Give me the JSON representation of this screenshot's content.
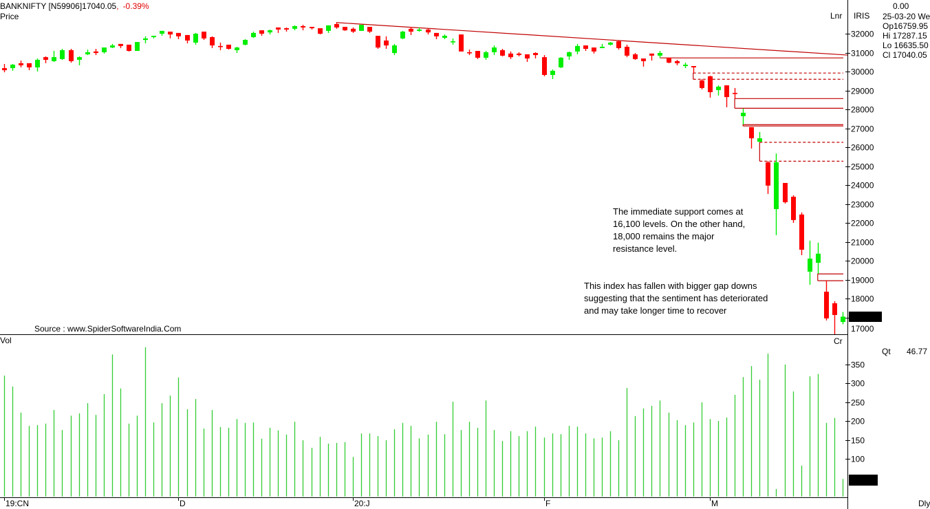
{
  "header": {
    "symbol": "BANKNIFTY [N59906]17040.05",
    "separator": ",",
    "change": "-0.39%",
    "price_label": "Price"
  },
  "info_panel": {
    "value": "0.00",
    "date": "25-03-20 We",
    "open": "Op16759.95",
    "high": "Hi 17287.15",
    "low": "Lo 16635.50",
    "close": "Cl 17040.05",
    "scale": "Lnr",
    "study": "IRIS",
    "last_price_tag": "17040.0",
    "cr_label": "Cr",
    "qt_label": "Qt",
    "qt_value": "46.77",
    "last_volume_tag": "46.77",
    "periodicity": "Dly"
  },
  "volume_label": "Vol",
  "source": "Source : www.SpiderSoftwareIndia.Com",
  "annotations": [
    [
      "The immediate support comes at",
      "16,100 levels. On the other hand,",
      "18,000 remains the major",
      "resistance level."
    ],
    [
      "This index has fallen with bigger gap downs",
      "suggesting that the sentiment has deteriorated",
      "and may take longer time to recover"
    ]
  ],
  "colors": {
    "up": "#00ee00",
    "down": "#ff0000",
    "volume": "#33cc33",
    "lines": "#c00000",
    "change": "#e00000",
    "price_label": "#33dd33",
    "muted": "#b8b8b8"
  },
  "chart_data": {
    "type": "candlestick",
    "price_axis": {
      "ticks": [
        32000,
        31000,
        30000,
        29000,
        28000,
        27000,
        26000,
        25000,
        24000,
        23000,
        22000,
        21000,
        20000,
        19000,
        18000,
        17000
      ],
      "range": [
        16100,
        32650
      ],
      "scale": "linear"
    },
    "volume_axis": {
      "ticks": [
        350,
        300,
        250,
        200,
        150,
        100
      ],
      "range": [
        0,
        400
      ]
    },
    "x_labels": [
      {
        "label": "19:CN",
        "candle": 0
      },
      {
        "label": "D",
        "candle": 21
      },
      {
        "label": "20:J",
        "candle": 42
      },
      {
        "label": "F",
        "candle": 65
      },
      {
        "label": "M",
        "candle": 85
      }
    ],
    "candles_ohlc": [
      [
        30180,
        30400,
        29960,
        30070
      ],
      [
        30180,
        30400,
        30040,
        30360
      ],
      [
        30440,
        30580,
        30220,
        30330
      ],
      [
        30440,
        30440,
        30070,
        30220
      ],
      [
        30220,
        30690,
        30000,
        30620
      ],
      [
        30760,
        30800,
        30440,
        30620
      ],
      [
        30550,
        31090,
        30510,
        30760
      ],
      [
        30660,
        31200,
        30620,
        31130
      ],
      [
        31130,
        31200,
        30470,
        30550
      ],
      [
        30620,
        30800,
        30330,
        30760
      ],
      [
        30910,
        31160,
        30870,
        31020
      ],
      [
        31060,
        31200,
        30870,
        30980
      ],
      [
        31020,
        31270,
        30950,
        31270
      ],
      [
        31270,
        31460,
        31240,
        31380
      ],
      [
        31460,
        31460,
        31240,
        31350
      ],
      [
        31420,
        31420,
        31060,
        31090
      ],
      [
        31090,
        31560,
        31090,
        31560
      ],
      [
        31670,
        31860,
        31490,
        31750
      ],
      [
        31820,
        31890,
        31750,
        31890
      ],
      [
        32000,
        32150,
        31890,
        32150
      ],
      [
        32110,
        32110,
        31750,
        31960
      ],
      [
        32040,
        32040,
        31710,
        31860
      ],
      [
        31930,
        31930,
        31490,
        31640
      ],
      [
        31530,
        32040,
        31420,
        32000
      ],
      [
        32110,
        32110,
        31670,
        31750
      ],
      [
        31820,
        31860,
        31240,
        31380
      ],
      [
        31350,
        31530,
        31130,
        31310
      ],
      [
        31420,
        31420,
        31160,
        31200
      ],
      [
        31130,
        31310,
        30980,
        31270
      ],
      [
        31420,
        31710,
        31380,
        31670
      ],
      [
        31820,
        32110,
        31780,
        32040
      ],
      [
        32180,
        32180,
        31890,
        32000
      ],
      [
        32070,
        32220,
        31960,
        32180
      ],
      [
        32330,
        32330,
        32040,
        32220
      ],
      [
        32290,
        32330,
        32110,
        32220
      ],
      [
        32260,
        32440,
        32180,
        32400
      ],
      [
        32400,
        32470,
        32180,
        32330
      ],
      [
        32360,
        32360,
        32220,
        32290
      ],
      [
        32290,
        32290,
        31960,
        32000
      ],
      [
        32150,
        32440,
        32040,
        32440
      ],
      [
        32510,
        32580,
        32260,
        32330
      ],
      [
        32360,
        32360,
        32150,
        32180
      ],
      [
        32260,
        32330,
        32040,
        32110
      ],
      [
        32150,
        32470,
        32150,
        32470
      ],
      [
        32360,
        32360,
        32040,
        32110
      ],
      [
        31890,
        31890,
        31200,
        31270
      ],
      [
        31640,
        31860,
        31200,
        31380
      ],
      [
        30980,
        31460,
        30870,
        31380
      ],
      [
        31750,
        32150,
        31710,
        32110
      ],
      [
        32260,
        32360,
        31930,
        32110
      ],
      [
        32150,
        32330,
        32110,
        32220
      ],
      [
        32220,
        32260,
        31960,
        32070
      ],
      [
        32040,
        32040,
        31710,
        31860
      ],
      [
        31780,
        31960,
        31710,
        31890
      ],
      [
        31560,
        31750,
        31420,
        31600
      ],
      [
        31960,
        31960,
        31060,
        31060
      ],
      [
        31020,
        31160,
        30870,
        30980
      ],
      [
        31090,
        31090,
        30660,
        30730
      ],
      [
        30730,
        31090,
        30620,
        31020
      ],
      [
        31020,
        31380,
        30870,
        31270
      ],
      [
        31130,
        31200,
        30800,
        30840
      ],
      [
        30950,
        31060,
        30660,
        30760
      ],
      [
        30950,
        31020,
        30800,
        30870
      ],
      [
        30910,
        30910,
        30510,
        30690
      ],
      [
        30980,
        31020,
        30690,
        30870
      ],
      [
        30760,
        30870,
        29750,
        29820
      ],
      [
        29820,
        30110,
        29600,
        30040
      ],
      [
        30220,
        30760,
        30180,
        30730
      ],
      [
        30800,
        31060,
        30620,
        31020
      ],
      [
        31060,
        31460,
        30910,
        31350
      ],
      [
        31380,
        31380,
        31090,
        31200
      ],
      [
        31270,
        31270,
        30950,
        31060
      ],
      [
        31240,
        31460,
        31240,
        31310
      ],
      [
        31420,
        31560,
        31380,
        31530
      ],
      [
        31600,
        31640,
        31160,
        31240
      ],
      [
        31310,
        31420,
        30760,
        30840
      ],
      [
        30910,
        30980,
        30620,
        30660
      ],
      [
        30690,
        30690,
        30260,
        30550
      ],
      [
        30950,
        30950,
        30580,
        30840
      ],
      [
        30840,
        31090,
        30730,
        30980
      ],
      [
        30730,
        30730,
        30440,
        30470
      ],
      [
        30550,
        30620,
        30330,
        30440
      ],
      [
        30290,
        30470,
        30180,
        30360
      ],
      [
        30290,
        30290,
        29930,
        30220
      ],
      [
        29530,
        29600,
        29060,
        29130
      ],
      [
        29750,
        29780,
        28620,
        28910
      ],
      [
        29020,
        29270,
        28730,
        29200
      ],
      [
        29270,
        29270,
        28110,
        28650
      ],
      [
        28870,
        29130,
        28580,
        28840
      ],
      [
        27640,
        28040,
        27200,
        27820
      ],
      [
        27060,
        27060,
        25930,
        26470
      ],
      [
        26290,
        26800,
        26260,
        26470
      ],
      [
        25200,
        25270,
        23530,
        23970
      ],
      [
        22730,
        25670,
        21350,
        25200
      ],
      [
        24110,
        24110,
        23020,
        23090
      ],
      [
        23380,
        23460,
        22000,
        22150
      ],
      [
        22440,
        22550,
        20290,
        20580
      ],
      [
        19420,
        21060,
        18730,
        20110
      ],
      [
        19890,
        20950,
        19310,
        20370
      ],
      [
        18360,
        18950,
        16840,
        16950
      ],
      [
        17750,
        17860,
        16110,
        17130
      ],
      [
        16759.95,
        17287.15,
        16635.5,
        17040.05
      ]
    ],
    "volume": [
      320,
      291,
      222,
      187,
      189,
      193,
      229,
      176,
      214,
      220,
      247,
      216,
      271,
      376,
      286,
      193,
      214,
      395,
      196,
      247,
      267,
      315,
      231,
      258,
      180,
      229,
      184,
      182,
      205,
      195,
      196,
      153,
      182,
      175,
      164,
      198,
      149,
      129,
      158,
      140,
      142,
      144,
      105,
      167,
      167,
      160,
      149,
      178,
      195,
      187,
      154,
      164,
      198,
      165,
      251,
      176,
      198,
      182,
      254,
      176,
      147,
      173,
      160,
      173,
      185,
      156,
      167,
      165,
      187,
      185,
      167,
      154,
      156,
      173,
      149,
      287,
      213,
      233,
      240,
      254,
      222,
      202,
      189,
      196,
      249,
      205,
      200,
      209,
      269,
      316,
      345,
      309,
      378,
      20,
      349,
      278,
      82,
      318,
      324,
      195,
      208,
      46.77
    ],
    "trendline": {
      "from_candle": 40,
      "from_price": 32590,
      "to_price": 30870,
      "style": "solid"
    },
    "levels": [
      {
        "price": 30720,
        "from_candle": 79,
        "style": "solid"
      },
      {
        "price": 29920,
        "from_candle": 83,
        "style": "dashed"
      },
      {
        "price": 29590,
        "from_candle": 83,
        "style": "dashed"
      },
      {
        "price": 28570,
        "from_candle": 88,
        "style": "solid"
      },
      {
        "price": 28060,
        "from_candle": 88,
        "style": "solid"
      },
      {
        "price": 27190,
        "from_candle": 89,
        "style": "solid"
      },
      {
        "price": 27120,
        "from_candle": 89,
        "style": "solid"
      },
      {
        "price": 26260,
        "from_candle": 91,
        "style": "dashed"
      },
      {
        "price": 25260,
        "from_candle": 91,
        "style": "dashed"
      },
      {
        "price": 19300,
        "from_candle": 98,
        "style": "solid"
      },
      {
        "price": 18940,
        "from_candle": 98,
        "style": "solid"
      }
    ]
  }
}
